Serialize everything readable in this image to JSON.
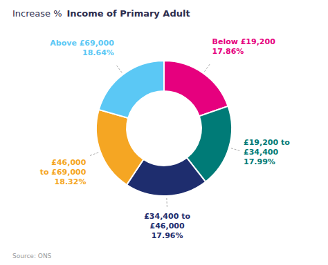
{
  "chart_data": {
    "type": "donut",
    "title": "Increase %",
    "subtitle": "Income of Primary Adult",
    "annotations": [
      "Source: ONS"
    ],
    "categories": [
      "Below £19,200",
      "£19,200 to\n£34,400",
      "£34,400 to\n£46,000",
      "£46,000\nto £69,000",
      "Above £69,000"
    ],
    "values": [
      17.86,
      17.99,
      17.96,
      18.32,
      18.64
    ],
    "value_labels": [
      "17.86%",
      "17.99%",
      "17.96%",
      "18.32%",
      "18.64%"
    ],
    "colors": [
      "#e6007e",
      "#007b77",
      "#1e2d6e",
      "#f5a623",
      "#5bc8f5"
    ],
    "data_labels": true
  }
}
